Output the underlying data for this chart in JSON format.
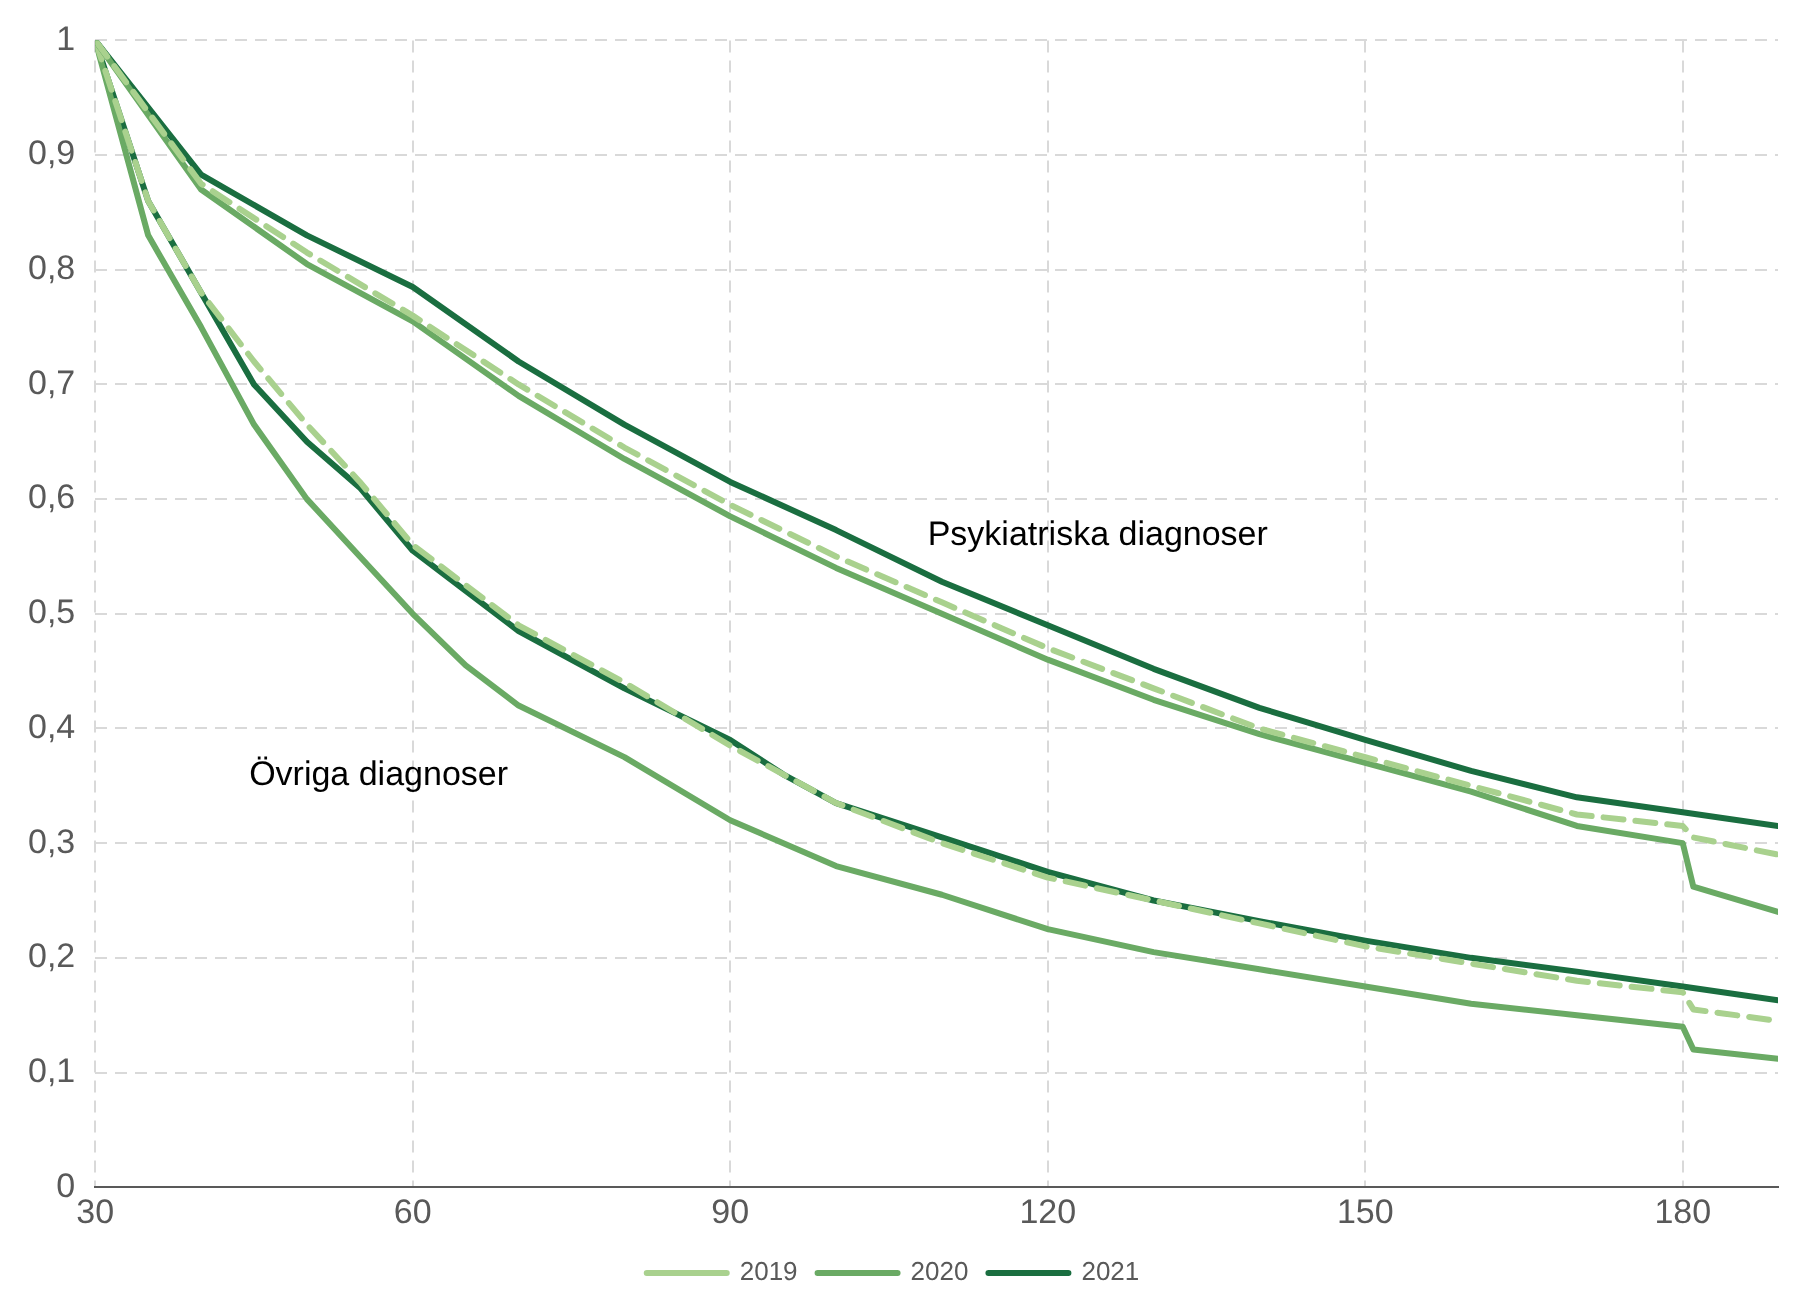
{
  "chart_data": {
    "type": "line",
    "xlim": [
      30,
      189
    ],
    "xticks": [
      30,
      60,
      90,
      120,
      150,
      180
    ],
    "ylim": [
      0,
      1
    ],
    "yticks": [
      0,
      {
        "value": 0.1,
        "label": "0,1"
      },
      {
        "value": 0.2,
        "label": "0,2"
      },
      {
        "value": 0.3,
        "label": "0,3"
      },
      {
        "value": 0.4,
        "label": "0,4"
      },
      {
        "value": 0.5,
        "label": "0,5"
      },
      {
        "value": 0.6,
        "label": "0,6"
      },
      {
        "value": 0.7,
        "label": "0,7"
      },
      {
        "value": 0.8,
        "label": "0,8"
      },
      {
        "value": 0.9,
        "label": "0,9"
      },
      1
    ],
    "grid": true,
    "legend": "bottom",
    "marker": "none",
    "annotations": [
      "Psykiatriska diagnoser",
      "Övriga diagnoser"
    ],
    "series": [
      {
        "name": "2019",
        "color": "#a9d18e",
        "line_style": "dashed",
        "x": [
          30,
          40,
          50,
          60,
          70,
          80,
          90,
          100,
          110,
          120,
          130,
          140,
          150,
          160,
          170,
          180,
          181,
          189
        ],
        "values": [
          1,
          0.875,
          0.815,
          0.76,
          0.7,
          0.645,
          0.595,
          0.55,
          0.51,
          0.47,
          0.435,
          0.4,
          0.375,
          0.35,
          0.325,
          0.315,
          0.305,
          0.29
        ]
      },
      {
        "name": "2020",
        "color": "#6aaa64",
        "line_style": "solid",
        "x": [
          30,
          40,
          50,
          60,
          70,
          80,
          90,
          100,
          110,
          120,
          130,
          140,
          150,
          160,
          170,
          180,
          181,
          189
        ],
        "values": [
          1,
          0.87,
          0.805,
          0.755,
          0.69,
          0.635,
          0.585,
          0.54,
          0.5,
          0.46,
          0.425,
          0.395,
          0.37,
          0.345,
          0.315,
          0.3,
          0.262,
          0.24
        ]
      },
      {
        "name": "2021",
        "color": "#1a6e40",
        "line_style": "solid",
        "x": [
          30,
          40,
          50,
          60,
          70,
          80,
          90,
          100,
          110,
          120,
          130,
          140,
          150,
          160,
          170,
          180,
          189
        ],
        "values": [
          1,
          0.883,
          0.83,
          0.785,
          0.72,
          0.665,
          0.615,
          0.573,
          0.528,
          0.49,
          0.452,
          0.418,
          0.39,
          0.363,
          0.34,
          0.327,
          0.315
        ]
      },
      {
        "color": "#a9d18e",
        "line_style": "dashed",
        "x": [
          30,
          35,
          40,
          45,
          50,
          55,
          60,
          70,
          80,
          90,
          95,
          100,
          110,
          120,
          130,
          140,
          150,
          160,
          170,
          180,
          181,
          189
        ],
        "values": [
          1,
          0.86,
          0.78,
          0.72,
          0.665,
          0.615,
          0.56,
          0.49,
          0.44,
          0.385,
          0.36,
          0.335,
          0.3,
          0.27,
          0.25,
          0.23,
          0.21,
          0.195,
          0.18,
          0.17,
          0.155,
          0.145
        ]
      },
      {
        "color": "#6aaa64",
        "line_style": "solid",
        "x": [
          30,
          35,
          40,
          45,
          50,
          55,
          60,
          65,
          70,
          80,
          90,
          100,
          110,
          120,
          130,
          140,
          150,
          160,
          170,
          180,
          181,
          189
        ],
        "values": [
          1,
          0.83,
          0.75,
          0.665,
          0.6,
          0.55,
          0.5,
          0.455,
          0.42,
          0.375,
          0.32,
          0.28,
          0.255,
          0.225,
          0.205,
          0.19,
          0.175,
          0.16,
          0.15,
          0.14,
          0.12,
          0.112
        ]
      },
      {
        "color": "#1a6e40",
        "line_style": "solid",
        "x": [
          30,
          35,
          40,
          45,
          50,
          55,
          60,
          65,
          70,
          80,
          90,
          95,
          100,
          110,
          120,
          130,
          140,
          150,
          160,
          170,
          180,
          189
        ],
        "values": [
          1,
          0.86,
          0.78,
          0.7,
          0.65,
          0.61,
          0.555,
          0.52,
          0.485,
          0.435,
          0.39,
          0.36,
          0.335,
          0.305,
          0.275,
          0.25,
          0.232,
          0.215,
          0.2,
          0.188,
          0.175,
          0.163
        ]
      }
    ]
  }
}
